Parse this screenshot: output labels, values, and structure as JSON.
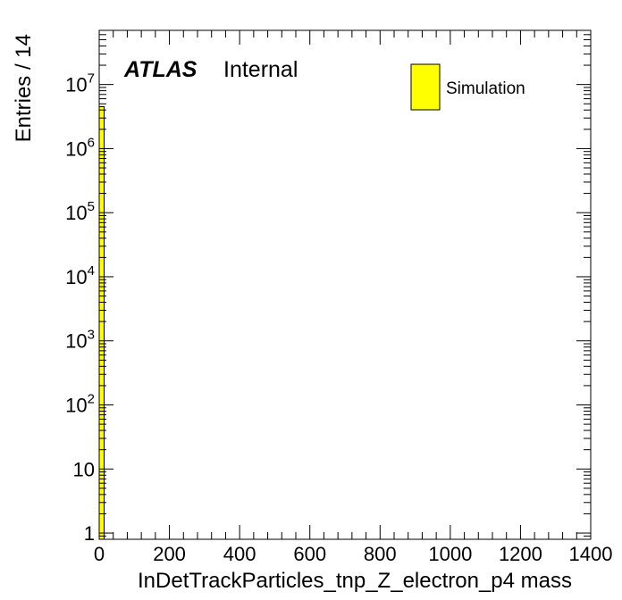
{
  "chart_data": {
    "type": "bar",
    "style": "histogram",
    "xlabel": "InDetTrackParticles_tnp_Z_electron_p4 mass",
    "ylabel": "Entries / 14",
    "xlim": [
      0,
      1400
    ],
    "ylim": [
      0.8,
      70000000
    ],
    "yscale": "log",
    "x_ticks": [
      0,
      200,
      400,
      600,
      800,
      1000,
      1200,
      1400
    ],
    "y_ticks": [
      {
        "value": 1,
        "base": "1",
        "exp": ""
      },
      {
        "value": 10,
        "base": "10",
        "exp": ""
      },
      {
        "value": 100,
        "base": "10",
        "exp": "2"
      },
      {
        "value": 1000,
        "base": "10",
        "exp": "3"
      },
      {
        "value": 10000,
        "base": "10",
        "exp": "4"
      },
      {
        "value": 100000,
        "base": "10",
        "exp": "5"
      },
      {
        "value": 1000000,
        "base": "10",
        "exp": "6"
      },
      {
        "value": 10000000,
        "base": "10",
        "exp": "7"
      }
    ],
    "bin_width": 14,
    "series": [
      {
        "name": "Simulation",
        "color": "#ffff00",
        "bins": [
          {
            "x_low": 0,
            "x_high": 14,
            "value": 4500000
          }
        ]
      }
    ],
    "legend_position": "top-right",
    "label": {
      "atlas": "ATLAS",
      "status": "Internal"
    }
  }
}
